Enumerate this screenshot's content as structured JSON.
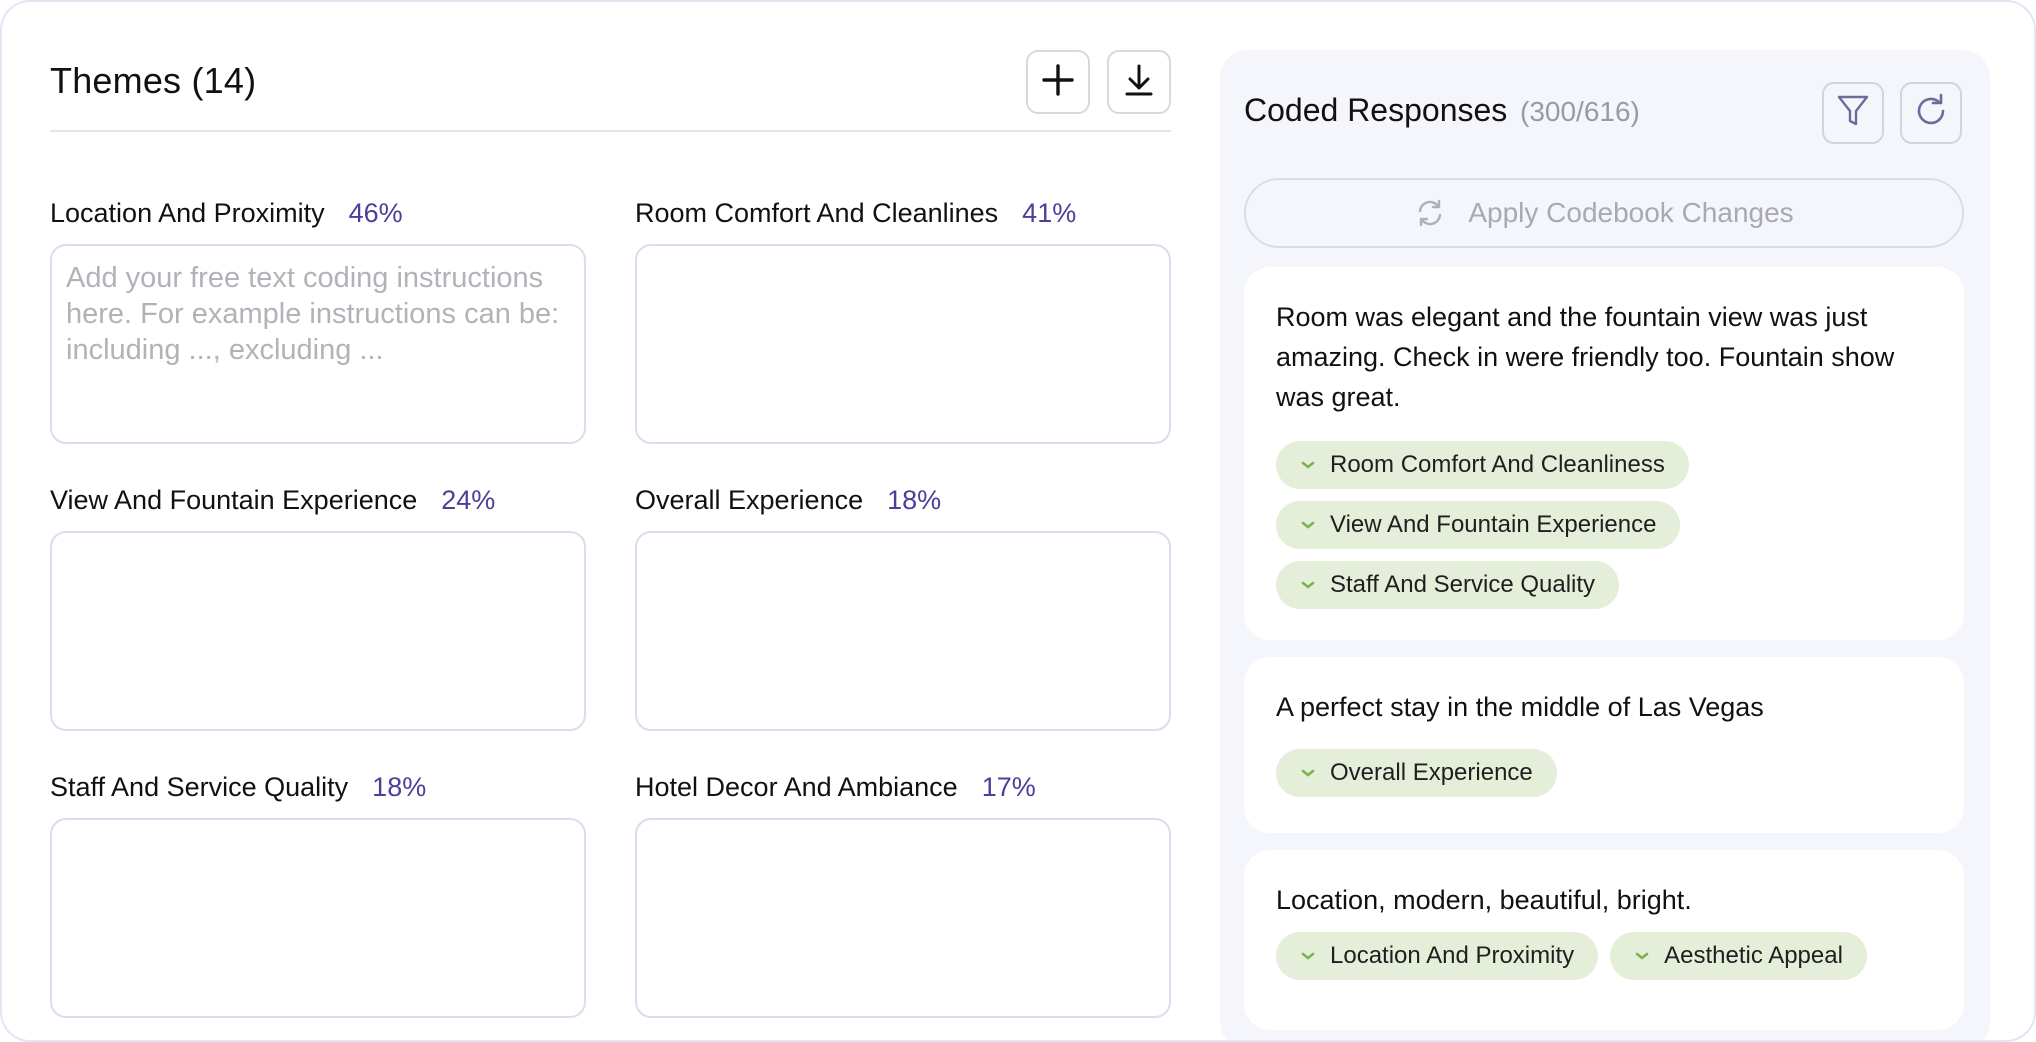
{
  "themes": {
    "title": "Themes (14)",
    "add_icon": "plus-icon",
    "download_icon": "download-icon",
    "items": [
      {
        "name": "Location And Proximity",
        "percent": "46%",
        "placeholder": "Add your free text coding instructions here. For example instructions can be: including ..., excluding ..."
      },
      {
        "name": "Room Comfort And Cleanlines",
        "percent": "41%",
        "placeholder": ""
      },
      {
        "name": "View And Fountain Experience",
        "percent": "24%",
        "placeholder": ""
      },
      {
        "name": "Overall Experience",
        "percent": "18%",
        "placeholder": ""
      },
      {
        "name": "Staff And Service Quality",
        "percent": "18%",
        "placeholder": ""
      },
      {
        "name": "Hotel Decor And Ambiance",
        "percent": "17%",
        "placeholder": ""
      }
    ]
  },
  "coded_responses": {
    "title": "Coded Responses",
    "count": "(300/616)",
    "filter_icon": "filter-icon",
    "refresh_icon": "refresh-icon",
    "apply_label": "Apply Codebook Changes",
    "responses": [
      {
        "text": "Room was elegant and the fountain view was just amazing. Check in were friendly too. Fountain show was great.",
        "tags": [
          "Room Comfort And Cleanliness",
          "View And Fountain Experience",
          "Staff And Service Quality"
        ]
      },
      {
        "text": "A perfect stay in the middle of Las Vegas",
        "tags": [
          "Overall Experience"
        ]
      },
      {
        "text": "Location, modern, beautiful, bright.",
        "tags": [
          "Location And Proximity",
          "Aesthetic Appeal"
        ]
      }
    ]
  },
  "colors": {
    "accent_percent": "#4b3f9a",
    "chip_bg": "#e4eed9",
    "chip_chevron": "#7fb14e",
    "panel_bg": "#f5f6fb"
  }
}
